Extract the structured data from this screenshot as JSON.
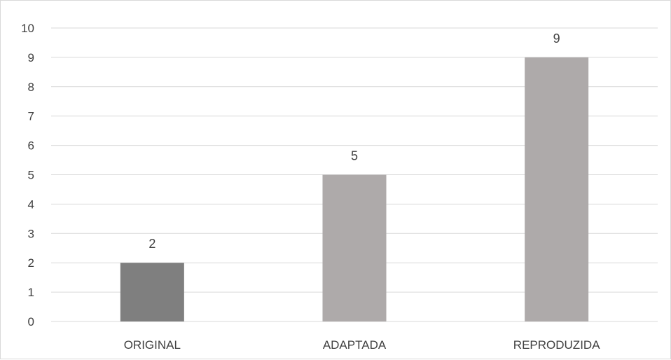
{
  "chart_data": {
    "type": "bar",
    "categories": [
      "ORIGINAL",
      "ADAPTADA",
      "REPRODUZIDA"
    ],
    "values": [
      2,
      5,
      9
    ],
    "data_labels": [
      "2",
      "5",
      "9"
    ],
    "bar_colors": [
      "#7f7f7f",
      "#aeaaaa",
      "#aeaaaa"
    ],
    "title": "",
    "xlabel": "",
    "ylabel": "",
    "ylim": [
      0,
      10
    ],
    "yticks": [
      0,
      1,
      2,
      3,
      4,
      5,
      6,
      7,
      8,
      9,
      10
    ],
    "ytick_labels": [
      "0",
      "1",
      "2",
      "3",
      "4",
      "5",
      "6",
      "7",
      "8",
      "9",
      "10"
    ],
    "grid": true,
    "legend": "none"
  },
  "colors": {
    "grid": "#d9d9d9",
    "text": "#404040",
    "background": "#ffffff"
  }
}
